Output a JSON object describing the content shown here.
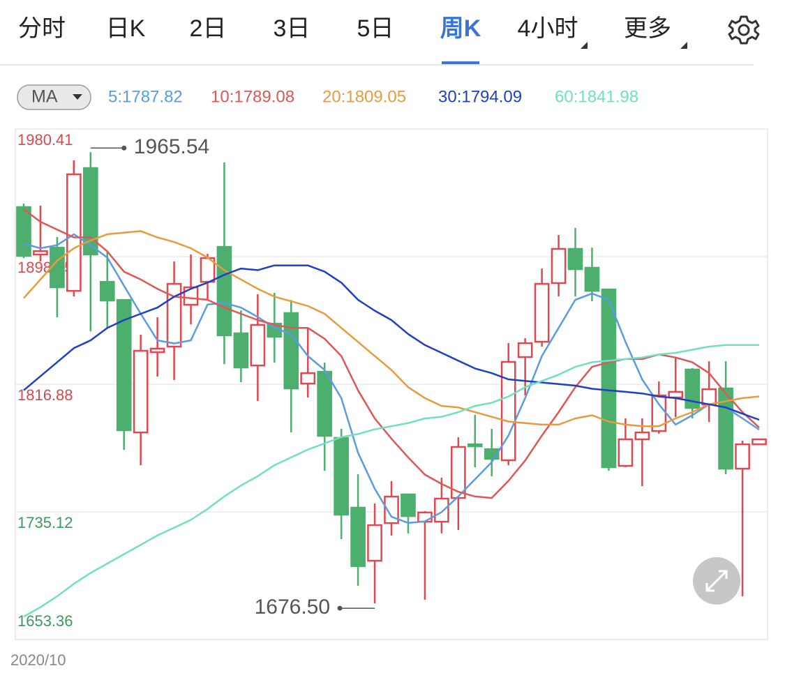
{
  "tabs": [
    {
      "label": "分时"
    },
    {
      "label": "日K"
    },
    {
      "label": "2日"
    },
    {
      "label": "3日"
    },
    {
      "label": "5日"
    },
    {
      "label": "周K",
      "active": true
    },
    {
      "label": "4小时",
      "dropdown": true
    },
    {
      "label": "更多",
      "dropdown": true
    }
  ],
  "indicator": "MA",
  "chart_data": {
    "type": "candlestick",
    "categories": [
      "2020/10",
      null,
      null,
      null,
      null,
      null,
      null,
      null,
      null,
      null,
      null,
      null,
      null,
      null,
      null,
      null,
      null,
      null,
      null,
      null,
      null,
      null,
      null,
      null,
      null,
      null,
      null,
      null,
      null,
      null,
      null,
      null,
      null,
      null,
      null,
      null,
      null,
      null,
      null,
      null,
      null,
      null,
      null,
      null,
      null
    ],
    "open": [
      1930.4,
      1900.0,
      1904.4,
      1876.7,
      1955.4,
      1882.5,
      1870.9,
      1786.0,
      1837.4,
      1841.0,
      1867.8,
      1882.5,
      1904.9,
      1849.5,
      1828.9,
      1855.7,
      1862.5,
      1817.3,
      1824.9,
      1782.5,
      1737.8,
      1703.8,
      1727.9,
      1746.3,
      1728.8,
      1728.8,
      1744.0,
      1778.4,
      1775.3,
      1768.2,
      1834.3,
      1844.1,
      1881.7,
      1903.6,
      1891.5,
      1877.6,
      1764.6,
      1781.6,
      1786.9,
      1808.4,
      1826.3,
      1803.9,
      1814.2,
      1762.8,
      1778.4
    ],
    "high": [
      1932.6,
      1931.3,
      1911.2,
      1960.3,
      1965.54,
      1902.2,
      1870.9,
      1848.6,
      1859.8,
      1895.5,
      1900.0,
      1900.4,
      1959.0,
      1864.2,
      1874.5,
      1875.4,
      1870.9,
      1853.1,
      1830.7,
      1788.3,
      1759.2,
      1740.5,
      1754.8,
      1746.7,
      1735.6,
      1757.0,
      1782.9,
      1797.2,
      1788.3,
      1843.2,
      1846.4,
      1891.0,
      1912.5,
      1917.0,
      1904.4,
      1877.6,
      1795.0,
      1795.0,
      1818.7,
      1834.3,
      1827.2,
      1831.6,
      1831.6,
      1780.7,
      1781.6
    ],
    "low": [
      1897.7,
      1895.5,
      1859.8,
      1873.2,
      1850.8,
      1853.1,
      1774.9,
      1765.0,
      1821.8,
      1819.6,
      1855.3,
      1870.9,
      1829.8,
      1818.2,
      1806.2,
      1830.7,
      1786.0,
      1808.4,
      1761.5,
      1717.7,
      1687.7,
      1676.5,
      1719.9,
      1721.3,
      1678.8,
      1721.3,
      1723.5,
      1763.7,
      1757.9,
      1765.0,
      1809.7,
      1841.0,
      1873.2,
      1873.2,
      1870.0,
      1761.5,
      1763.7,
      1751.6,
      1785.2,
      1795.9,
      1795.0,
      1792.7,
      1759.2,
      1681.0,
      1778.4
    ],
    "close": [
      1899.1,
      1902.2,
      1879.0,
      1951.4,
      1900.0,
      1870.5,
      1787.4,
      1838.3,
      1839.7,
      1881.2,
      1879.0,
      1897.7,
      1848.2,
      1827.6,
      1854.9,
      1847.3,
      1814.2,
      1824.0,
      1783.8,
      1733.3,
      1700.3,
      1726.6,
      1744.9,
      1732.4,
      1734.7,
      1743.6,
      1776.7,
      1777.1,
      1769.1,
      1831.2,
      1843.2,
      1881.2,
      1903.6,
      1890.6,
      1876.7,
      1763.7,
      1781.6,
      1786.0,
      1809.7,
      1812.0,
      1801.7,
      1813.7,
      1762.8,
      1778.4,
      1781.6
    ],
    "up_color": "#e2474f",
    "down_color": "#4caf6e",
    "high_label": "1965.54",
    "low_label": "1676.50",
    "series": [
      {
        "name": "5:1787.82",
        "color": "#5b9be0",
        "values": [
          1907,
          1904,
          1906,
          1913,
          1906,
          1898,
          1880,
          1862,
          1845,
          1843,
          1845,
          1868,
          1869,
          1866,
          1860,
          1853,
          1849,
          1835,
          1826,
          1808,
          1773,
          1750,
          1732,
          1728,
          1729,
          1735,
          1745,
          1756,
          1767,
          1784,
          1808,
          1835,
          1853,
          1871,
          1875,
          1871,
          1844,
          1820,
          1804,
          1791,
          1797,
          1804,
          1802,
          1795,
          1787.82
        ]
      },
      {
        "name": "10:1789.08",
        "color": "#df5656",
        "values": [
          1929,
          1921,
          1916,
          1911,
          1911,
          1902,
          1889,
          1884,
          1878,
          1873,
          1872,
          1871,
          1866,
          1862,
          1858,
          1855,
          1853,
          1853,
          1846,
          1835,
          1813,
          1795,
          1782,
          1770,
          1759,
          1753,
          1748,
          1745,
          1744,
          1755,
          1768,
          1784,
          1799,
          1815,
          1828,
          1831,
          1833,
          1833,
          1836,
          1834,
          1831,
          1824,
          1811,
          1799,
          1789.08
        ]
      },
      {
        "name": "20:1809.05",
        "color": "#e89b3c",
        "values": [
          1872,
          1884,
          1896,
          1904,
          1909,
          1913,
          1914,
          1915,
          1911,
          1908,
          1904,
          1898,
          1890,
          1884,
          1878,
          1873,
          1870,
          1867,
          1862,
          1853,
          1844,
          1835,
          1826,
          1815,
          1808,
          1803,
          1802,
          1799,
          1796,
          1793,
          1792,
          1791,
          1791,
          1795,
          1797,
          1793,
          1791,
          1790,
          1790,
          1795,
          1799,
          1804,
          1806,
          1808,
          1809.05
        ]
      },
      {
        "name": "30:1794.09",
        "color": "#1f3fc4",
        "values": [
          1813,
          1822,
          1831,
          1840,
          1845,
          1853,
          1858,
          1862,
          1866,
          1873,
          1878,
          1882,
          1887,
          1891,
          1890,
          1893,
          1893,
          1893,
          1889,
          1882,
          1871,
          1864,
          1858,
          1849,
          1842,
          1837,
          1832,
          1827,
          1824,
          1820,
          1819,
          1818,
          1817,
          1816,
          1814,
          1813,
          1812,
          1811,
          1809,
          1808,
          1806,
          1804,
          1802,
          1798,
          1794.09
        ]
      },
      {
        "name": "60:1841.98",
        "color": "#6fe0c0",
        "values": [
          1668,
          1674,
          1681,
          1689,
          1696,
          1702,
          1708,
          1714,
          1720,
          1725,
          1730,
          1737,
          1745,
          1752,
          1758,
          1765,
          1770,
          1775,
          1779,
          1783,
          1785,
          1788,
          1790,
          1792,
          1795,
          1796,
          1799,
          1803,
          1805,
          1809,
          1815,
          1819,
          1823,
          1828,
          1831,
          1832,
          1833,
          1834,
          1836,
          1837,
          1839,
          1841,
          1842,
          1842,
          1841.98
        ]
      }
    ],
    "ylim": [
      1653.36,
      1980.41
    ],
    "yticks": [
      1980.41,
      1898.65,
      1816.88,
      1735.12,
      1653.36
    ],
    "ytick_colors": [
      "#d9484f",
      "#d9484f",
      "#d9484f",
      "#3b9a5c",
      "#3b9a5c"
    ],
    "grid": true
  }
}
